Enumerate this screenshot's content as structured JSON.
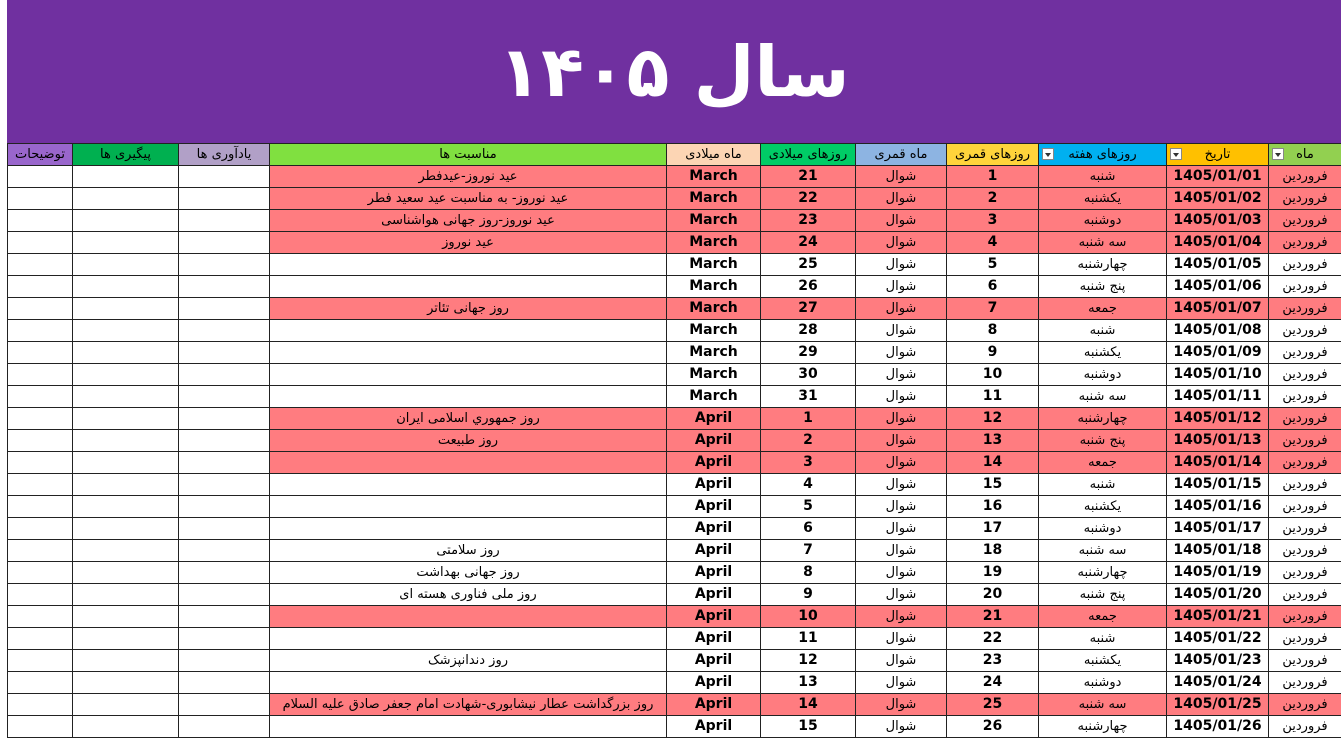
{
  "header": {
    "title": "سال ۱۴۰۵",
    "color": "#7030a0"
  },
  "table": {
    "columns": [
      {
        "label": "ماه",
        "color": "#92d050",
        "filter": true
      },
      {
        "label": "تاریخ",
        "color": "#ffc000",
        "filter": true
      },
      {
        "label": "روزهای هفته",
        "color": "#00b0f0",
        "filter": true
      },
      {
        "label": "روزهای قمری",
        "color": "#ffd43b"
      },
      {
        "label": "ماه قمری",
        "color": "#8db4e2"
      },
      {
        "label": "روزهای میلادی",
        "color": "#00cc66"
      },
      {
        "label": "ماه میلادی",
        "color": "#fcd5b4"
      },
      {
        "label": "مناسبت ها",
        "color": "#80e040"
      },
      {
        "label": "یادآوری ها",
        "color": "#b1a0c7"
      },
      {
        "label": "پیگیری ها",
        "color": "#00b050"
      },
      {
        "label": "توضیحات",
        "color": "#9966cc"
      }
    ],
    "highlight_color": "#ff7c80",
    "rows": [
      {
        "month": "فروردین",
        "date": "1405/01/01",
        "weekday": "شنبه",
        "lunar_day": 1,
        "lunar_month": "شوال",
        "greg_day": 21,
        "greg_month": "March",
        "occasion": "عید نوروز-عیدفطر",
        "highlighted": true
      },
      {
        "month": "فروردین",
        "date": "1405/01/02",
        "weekday": "یکشنبه",
        "lunar_day": 2,
        "lunar_month": "شوال",
        "greg_day": 22,
        "greg_month": "March",
        "occasion": "عید نوروز- به مناسبت عید سعید فطر",
        "highlighted": true
      },
      {
        "month": "فروردین",
        "date": "1405/01/03",
        "weekday": "دوشنبه",
        "lunar_day": 3,
        "lunar_month": "شوال",
        "greg_day": 23,
        "greg_month": "March",
        "occasion": "عید نوروز-روز جهانی هواشناسی",
        "highlighted": true
      },
      {
        "month": "فروردین",
        "date": "1405/01/04",
        "weekday": "سه شنبه",
        "lunar_day": 4,
        "lunar_month": "شوال",
        "greg_day": 24,
        "greg_month": "March",
        "occasion": "عید نوروز",
        "highlighted": true
      },
      {
        "month": "فروردین",
        "date": "1405/01/05",
        "weekday": "چهارشنبه",
        "lunar_day": 5,
        "lunar_month": "شوال",
        "greg_day": 25,
        "greg_month": "March"
      },
      {
        "month": "فروردین",
        "date": "1405/01/06",
        "weekday": "پنج شنبه",
        "lunar_day": 6,
        "lunar_month": "شوال",
        "greg_day": 26,
        "greg_month": "March"
      },
      {
        "month": "فروردین",
        "date": "1405/01/07",
        "weekday": "جمعه",
        "lunar_day": 7,
        "lunar_month": "شوال",
        "greg_day": 27,
        "greg_month": "March",
        "occasion": "روز جهانی تئاتر",
        "highlighted": true
      },
      {
        "month": "فروردین",
        "date": "1405/01/08",
        "weekday": "شنبه",
        "lunar_day": 8,
        "lunar_month": "شوال",
        "greg_day": 28,
        "greg_month": "March"
      },
      {
        "month": "فروردین",
        "date": "1405/01/09",
        "weekday": "یکشنبه",
        "lunar_day": 9,
        "lunar_month": "شوال",
        "greg_day": 29,
        "greg_month": "March"
      },
      {
        "month": "فروردین",
        "date": "1405/01/10",
        "weekday": "دوشنبه",
        "lunar_day": 10,
        "lunar_month": "شوال",
        "greg_day": 30,
        "greg_month": "March"
      },
      {
        "month": "فروردین",
        "date": "1405/01/11",
        "weekday": "سه شنبه",
        "lunar_day": 11,
        "lunar_month": "شوال",
        "greg_day": 31,
        "greg_month": "March"
      },
      {
        "month": "فروردین",
        "date": "1405/01/12",
        "weekday": "چهارشنبه",
        "lunar_day": 12,
        "lunar_month": "شوال",
        "greg_day": 1,
        "greg_month": "April",
        "occasion": "روز جمهوري اسلامی ایران",
        "highlighted": true
      },
      {
        "month": "فروردین",
        "date": "1405/01/13",
        "weekday": "پنج شنبه",
        "lunar_day": 13,
        "lunar_month": "شوال",
        "greg_day": 2,
        "greg_month": "April",
        "occasion": "روز طبیعت",
        "highlighted": true
      },
      {
        "month": "فروردین",
        "date": "1405/01/14",
        "weekday": "جمعه",
        "lunar_day": 14,
        "lunar_month": "شوال",
        "greg_day": 3,
        "greg_month": "April",
        "highlighted": true
      },
      {
        "month": "فروردین",
        "date": "1405/01/15",
        "weekday": "شنبه",
        "lunar_day": 15,
        "lunar_month": "شوال",
        "greg_day": 4,
        "greg_month": "April"
      },
      {
        "month": "فروردین",
        "date": "1405/01/16",
        "weekday": "یکشنبه",
        "lunar_day": 16,
        "lunar_month": "شوال",
        "greg_day": 5,
        "greg_month": "April"
      },
      {
        "month": "فروردین",
        "date": "1405/01/17",
        "weekday": "دوشنبه",
        "lunar_day": 17,
        "lunar_month": "شوال",
        "greg_day": 6,
        "greg_month": "April"
      },
      {
        "month": "فروردین",
        "date": "1405/01/18",
        "weekday": "سه شنبه",
        "lunar_day": 18,
        "lunar_month": "شوال",
        "greg_day": 7,
        "greg_month": "April",
        "occasion": "روز سلامتی"
      },
      {
        "month": "فروردین",
        "date": "1405/01/19",
        "weekday": "چهارشنبه",
        "lunar_day": 19,
        "lunar_month": "شوال",
        "greg_day": 8,
        "greg_month": "April",
        "occasion": "روز جهانی بهداشت"
      },
      {
        "month": "فروردین",
        "date": "1405/01/20",
        "weekday": "پنج شنبه",
        "lunar_day": 20,
        "lunar_month": "شوال",
        "greg_day": 9,
        "greg_month": "April",
        "occasion": "روز ملی فناوری هسته ای"
      },
      {
        "month": "فروردین",
        "date": "1405/01/21",
        "weekday": "جمعه",
        "lunar_day": 21,
        "lunar_month": "شوال",
        "greg_day": 10,
        "greg_month": "April",
        "highlighted": true
      },
      {
        "month": "فروردین",
        "date": "1405/01/22",
        "weekday": "شنبه",
        "lunar_day": 22,
        "lunar_month": "شوال",
        "greg_day": 11,
        "greg_month": "April"
      },
      {
        "month": "فروردین",
        "date": "1405/01/23",
        "weekday": "یکشنبه",
        "lunar_day": 23,
        "lunar_month": "شوال",
        "greg_day": 12,
        "greg_month": "April",
        "occasion": "روز دندانپزشک"
      },
      {
        "month": "فروردین",
        "date": "1405/01/24",
        "weekday": "دوشنبه",
        "lunar_day": 24,
        "lunar_month": "شوال",
        "greg_day": 13,
        "greg_month": "April"
      },
      {
        "month": "فروردین",
        "date": "1405/01/25",
        "weekday": "سه شنبه",
        "lunar_day": 25,
        "lunar_month": "شوال",
        "greg_day": 14,
        "greg_month": "April",
        "occasion": "روز بزرگداشت عطار نیشابوری-شهادت امام جعفر صادق علیه السلام",
        "highlighted": true
      },
      {
        "month": "فروردین",
        "date": "1405/01/26",
        "weekday": "چهارشنبه",
        "lunar_day": 26,
        "lunar_month": "شوال",
        "greg_day": 15,
        "greg_month": "April"
      }
    ]
  }
}
